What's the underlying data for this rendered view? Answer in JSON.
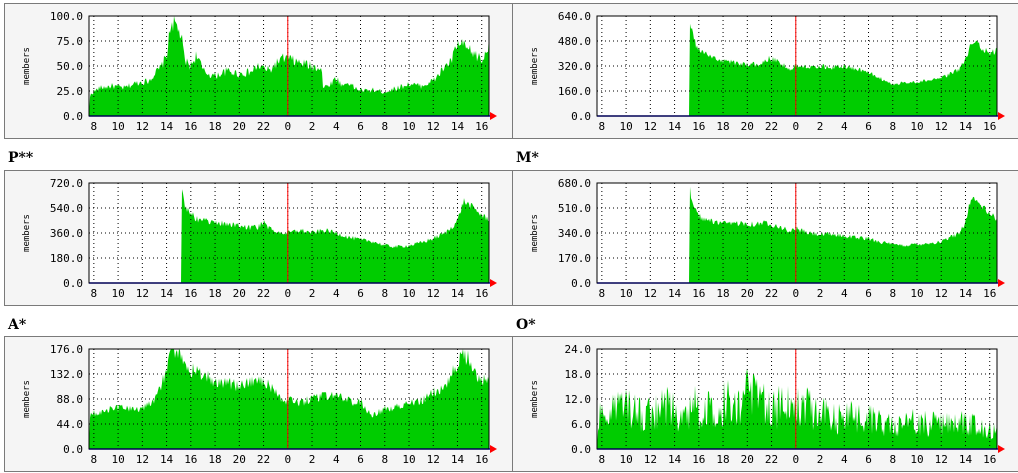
{
  "colors": {
    "area": "#00cc00",
    "grid": "#000000",
    "marker": "#ff0000",
    "baseline": "#0000ff",
    "frame_bg": "#f5f5f5"
  },
  "chart_data": [
    {
      "id": "c0",
      "title": "",
      "type": "area",
      "ylabel": "members",
      "yticks": [
        "0.0",
        "25.0",
        "50.0",
        "75.0",
        "100.0"
      ],
      "ymax": 100,
      "xticks": [
        "8",
        "10",
        "12",
        "14",
        "16",
        "18",
        "20",
        "22",
        "0",
        "2",
        "4",
        "6",
        "8",
        "10",
        "12",
        "14",
        "16"
      ],
      "series": [
        {
          "knots": [
            [
              7.6,
              0
            ],
            [
              7.7,
              22
            ],
            [
              8.5,
              28
            ],
            [
              9.5,
              30
            ],
            [
              10.5,
              28
            ],
            [
              11.5,
              33
            ],
            [
              12.5,
              35
            ],
            [
              13,
              42
            ],
            [
              13.5,
              48
            ],
            [
              14,
              60
            ],
            [
              14.4,
              95
            ],
            [
              14.8,
              90
            ],
            [
              15.2,
              80
            ],
            [
              15.5,
              55
            ],
            [
              16,
              50
            ],
            [
              16.5,
              62
            ],
            [
              17,
              45
            ],
            [
              17.5,
              42
            ],
            [
              18,
              40
            ],
            [
              19,
              45
            ],
            [
              20,
              42
            ],
            [
              21,
              44
            ],
            [
              21.5,
              50
            ],
            [
              22,
              48
            ],
            [
              22.5,
              45
            ],
            [
              23,
              52
            ],
            [
              23.5,
              57
            ],
            [
              24,
              58
            ],
            [
              24.5,
              55
            ],
            [
              25,
              53
            ],
            [
              25.5,
              52
            ],
            [
              26,
              49
            ],
            [
              26.8,
              49
            ],
            [
              26.9,
              28
            ],
            [
              27.5,
              32
            ],
            [
              28,
              38
            ],
            [
              28.5,
              30
            ],
            [
              29,
              34
            ],
            [
              29.5,
              28
            ],
            [
              30,
              26
            ],
            [
              30.5,
              25
            ],
            [
              31,
              26
            ],
            [
              32,
              24
            ],
            [
              33,
              28
            ],
            [
              34,
              32
            ],
            [
              35,
              30
            ],
            [
              36,
              35
            ],
            [
              36.5,
              42
            ],
            [
              37,
              50
            ],
            [
              37.5,
              55
            ],
            [
              38,
              72
            ],
            [
              38.5,
              70
            ],
            [
              39,
              65
            ],
            [
              39.6,
              60
            ],
            [
              40.1,
              55
            ],
            [
              40.6,
              74
            ]
          ],
          "jitter": 0.1
        }
      ]
    },
    {
      "id": "c1",
      "title": "",
      "type": "area",
      "ylabel": "members",
      "yticks": [
        "0.0",
        "160.0",
        "320.0",
        "480.0",
        "640.0"
      ],
      "ymax": 640,
      "xticks": [
        "8",
        "10",
        "12",
        "14",
        "16",
        "18",
        "20",
        "22",
        "0",
        "2",
        "4",
        "6",
        "8",
        "10",
        "12",
        "14",
        "16"
      ],
      "series": [
        {
          "knots": [
            [
              7.6,
              0
            ],
            [
              15.2,
              0
            ],
            [
              15.25,
              630
            ],
            [
              15.5,
              520
            ],
            [
              15.8,
              440
            ],
            [
              16.5,
              400
            ],
            [
              17.5,
              360
            ],
            [
              18.5,
              350
            ],
            [
              19,
              340
            ],
            [
              20,
              330
            ],
            [
              21,
              330
            ],
            [
              21.8,
              370
            ],
            [
              22.5,
              350
            ],
            [
              23.5,
              300
            ],
            [
              24,
              320
            ],
            [
              25,
              320
            ],
            [
              26,
              320
            ],
            [
              27,
              310
            ],
            [
              28,
              320
            ],
            [
              29,
              300
            ],
            [
              30,
              280
            ],
            [
              31,
              240
            ],
            [
              32,
              200
            ],
            [
              33,
              215
            ],
            [
              34,
              220
            ],
            [
              35,
              230
            ],
            [
              36,
              240
            ],
            [
              37,
              280
            ],
            [
              37.5,
              300
            ],
            [
              38,
              360
            ],
            [
              38.5,
              470
            ],
            [
              39,
              460
            ],
            [
              39.6,
              420
            ],
            [
              40.1,
              400
            ],
            [
              40.6,
              420
            ]
          ],
          "jitter": 0.05
        }
      ]
    },
    {
      "id": "c2",
      "title": "P**",
      "type": "area",
      "ylabel": "members",
      "yticks": [
        "0.0",
        "180.0",
        "360.0",
        "540.0",
        "720.0"
      ],
      "ymax": 720,
      "xticks": [
        "8",
        "10",
        "12",
        "14",
        "16",
        "18",
        "20",
        "22",
        "0",
        "2",
        "4",
        "6",
        "8",
        "10",
        "12",
        "14",
        "16"
      ],
      "series": [
        {
          "knots": [
            [
              7.6,
              0
            ],
            [
              15.2,
              0
            ],
            [
              15.25,
              700
            ],
            [
              15.5,
              560
            ],
            [
              16,
              500
            ],
            [
              16.5,
              460
            ],
            [
              17.5,
              440
            ],
            [
              18.5,
              430
            ],
            [
              19.5,
              420
            ],
            [
              20.5,
              400
            ],
            [
              21.5,
              400
            ],
            [
              22,
              440
            ],
            [
              22.5,
              390
            ],
            [
              23.5,
              360
            ],
            [
              24,
              360
            ],
            [
              25,
              380
            ],
            [
              26,
              360
            ],
            [
              27,
              380
            ],
            [
              28,
              360
            ],
            [
              29,
              330
            ],
            [
              30,
              310
            ],
            [
              31,
              300
            ],
            [
              32,
              270
            ],
            [
              33,
              260
            ],
            [
              34,
              270
            ],
            [
              35,
              290
            ],
            [
              36,
              320
            ],
            [
              37,
              360
            ],
            [
              37.5,
              400
            ],
            [
              38,
              450
            ],
            [
              38.5,
              590
            ],
            [
              39,
              560
            ],
            [
              39.6,
              520
            ],
            [
              40.1,
              480
            ],
            [
              40.6,
              460
            ]
          ],
          "jitter": 0.05
        }
      ]
    },
    {
      "id": "c3",
      "title": "M*",
      "type": "area",
      "ylabel": "members",
      "yticks": [
        "0.0",
        "170.0",
        "340.0",
        "510.0",
        "680.0"
      ],
      "ymax": 680,
      "xticks": [
        "8",
        "10",
        "12",
        "14",
        "16",
        "18",
        "20",
        "22",
        "0",
        "2",
        "4",
        "6",
        "8",
        "10",
        "12",
        "14",
        "16"
      ],
      "series": [
        {
          "knots": [
            [
              7.6,
              0
            ],
            [
              15.2,
              0
            ],
            [
              15.25,
              660
            ],
            [
              15.5,
              520
            ],
            [
              16,
              460
            ],
            [
              16.5,
              430
            ],
            [
              17.5,
              410
            ],
            [
              18.5,
              400
            ],
            [
              19.5,
              410
            ],
            [
              20.5,
              400
            ],
            [
              21.5,
              410
            ],
            [
              22.5,
              390
            ],
            [
              23.5,
              350
            ],
            [
              24,
              370
            ],
            [
              25,
              340
            ],
            [
              26,
              330
            ],
            [
              27,
              330
            ],
            [
              28,
              320
            ],
            [
              29,
              310
            ],
            [
              30,
              300
            ],
            [
              31,
              280
            ],
            [
              32,
              260
            ],
            [
              33,
              255
            ],
            [
              34,
              265
            ],
            [
              35,
              270
            ],
            [
              36,
              280
            ],
            [
              37,
              320
            ],
            [
              37.5,
              340
            ],
            [
              38,
              420
            ],
            [
              38.5,
              590
            ],
            [
              39,
              550
            ],
            [
              39.6,
              500
            ],
            [
              40.1,
              460
            ],
            [
              40.6,
              440
            ]
          ],
          "jitter": 0.05
        }
      ]
    },
    {
      "id": "c4",
      "title": "A*",
      "type": "area",
      "ylabel": "members",
      "yticks": [
        "0.0",
        "44.0",
        "88.0",
        "132.0",
        "176.0"
      ],
      "ymax": 176,
      "xticks": [
        "8",
        "10",
        "12",
        "14",
        "16",
        "18",
        "20",
        "22",
        "0",
        "2",
        "4",
        "6",
        "8",
        "10",
        "12",
        "14",
        "16"
      ],
      "series": [
        {
          "knots": [
            [
              7.6,
              0
            ],
            [
              7.7,
              62
            ],
            [
              8.5,
              65
            ],
            [
              9.5,
              70
            ],
            [
              10.5,
              72
            ],
            [
              11.5,
              70
            ],
            [
              12.5,
              78
            ],
            [
              13,
              88
            ],
            [
              13.5,
              110
            ],
            [
              14,
              140
            ],
            [
              14.5,
              172
            ],
            [
              15,
              168
            ],
            [
              15.5,
              150
            ],
            [
              16,
              140
            ],
            [
              17,
              130
            ],
            [
              18,
              120
            ],
            [
              19,
              118
            ],
            [
              20,
              110
            ],
            [
              21,
              118
            ],
            [
              21.5,
              128
            ],
            [
              22,
              120
            ],
            [
              22.5,
              110
            ],
            [
              23,
              100
            ],
            [
              23.5,
              90
            ],
            [
              24,
              85
            ],
            [
              25,
              80
            ],
            [
              26,
              88
            ],
            [
              27,
              92
            ],
            [
              28,
              95
            ],
            [
              29,
              86
            ],
            [
              30,
              80
            ],
            [
              31,
              60
            ],
            [
              32,
              70
            ],
            [
              33,
              75
            ],
            [
              34,
              78
            ],
            [
              35,
              85
            ],
            [
              36,
              100
            ],
            [
              37,
              110
            ],
            [
              37.5,
              130
            ],
            [
              38,
              150
            ],
            [
              38.5,
              170
            ],
            [
              39,
              155
            ],
            [
              39.6,
              130
            ],
            [
              40.1,
              120
            ],
            [
              40.6,
              118
            ]
          ],
          "jitter": 0.1
        }
      ]
    },
    {
      "id": "c5",
      "title": "O*",
      "type": "area",
      "ylabel": "members",
      "yticks": [
        "0.0",
        "6.0",
        "12.0",
        "18.0",
        "24.0"
      ],
      "ymax": 24,
      "xticks": [
        "8",
        "10",
        "12",
        "14",
        "16",
        "18",
        "20",
        "22",
        "0",
        "2",
        "4",
        "6",
        "8",
        "10",
        "12",
        "14",
        "16"
      ],
      "series": [
        {
          "knots": [
            [
              7.6,
              0
            ],
            [
              7.7,
              8
            ],
            [
              8.5,
              9
            ],
            [
              9.5,
              10
            ],
            [
              10.5,
              9
            ],
            [
              11.5,
              8
            ],
            [
              12.5,
              9
            ],
            [
              13.5,
              10
            ],
            [
              14.5,
              9
            ],
            [
              15.5,
              10
            ],
            [
              16.5,
              9
            ],
            [
              17.5,
              10
            ],
            [
              18.5,
              12
            ],
            [
              19.5,
              13
            ],
            [
              20.5,
              12
            ],
            [
              21.5,
              11
            ],
            [
              22.5,
              10
            ],
            [
              23.5,
              11
            ],
            [
              24,
              12
            ],
            [
              25,
              10
            ],
            [
              26,
              9
            ],
            [
              27,
              8
            ],
            [
              28,
              7
            ],
            [
              29,
              8
            ],
            [
              30,
              7
            ],
            [
              31,
              6
            ],
            [
              32,
              7
            ],
            [
              33,
              6
            ],
            [
              34,
              7
            ],
            [
              35,
              6
            ],
            [
              36,
              6
            ],
            [
              37,
              6
            ],
            [
              38,
              7
            ],
            [
              39,
              5
            ],
            [
              39.6,
              6
            ],
            [
              40.1,
              5
            ],
            [
              40.6,
              5
            ]
          ],
          "jitter": 0.55
        }
      ]
    }
  ]
}
